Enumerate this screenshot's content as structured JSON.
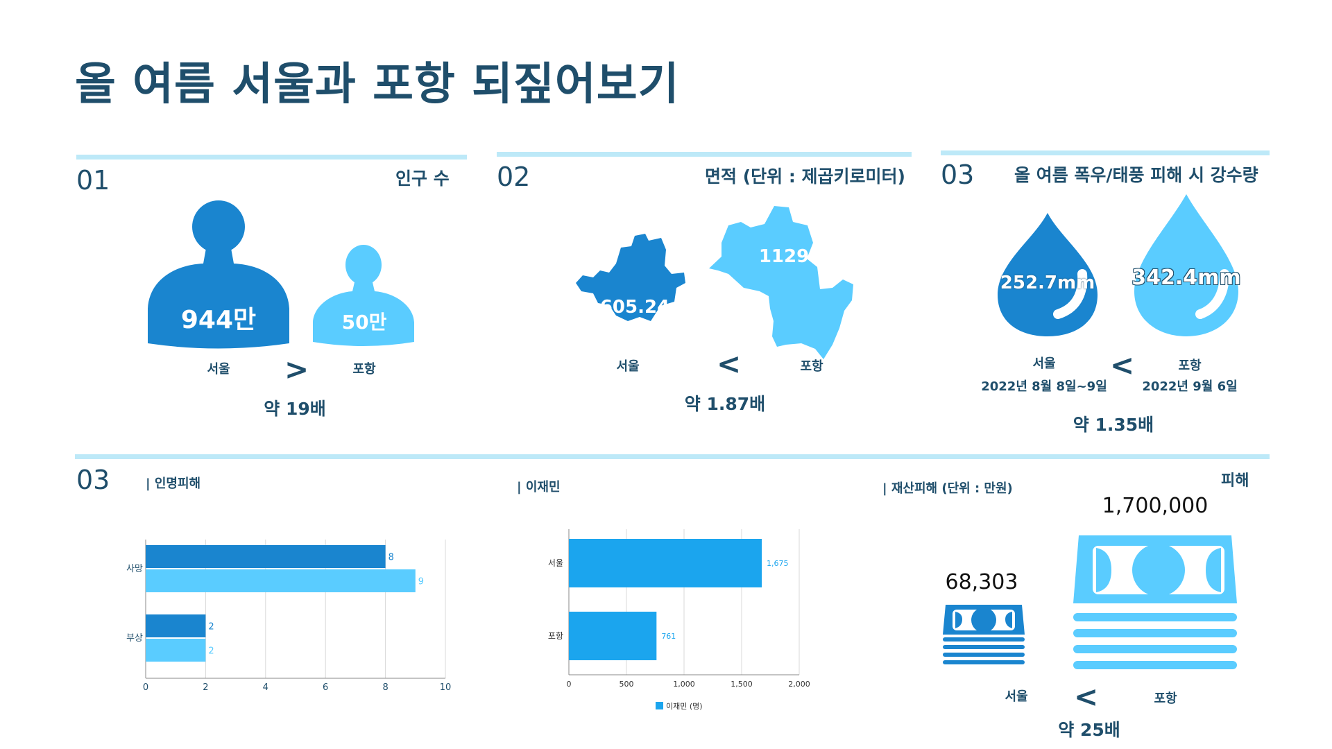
{
  "title": "올 여름 서울과 포항 되짚어보기",
  "colors": {
    "dark": "#1f4e6b",
    "seoul": "#1a85cf",
    "pohang": "#5accff",
    "bar_blue": "#1ba5ee",
    "band": "#bde9f8"
  },
  "section1": {
    "num": "01",
    "heading": "인구 수",
    "seoul_value": "944만",
    "pohang_value": "50만",
    "seoul_label": "서울",
    "pohang_label": "포항",
    "compare": ">",
    "ratio": "약 19배",
    "icons": [
      "person-icon",
      "person-icon"
    ]
  },
  "section2": {
    "num": "02",
    "heading": "면적 (단위 : 제곱키로미터)",
    "seoul_value": "605.24",
    "pohang_value": "1129",
    "seoul_label": "서울",
    "pohang_label": "포항",
    "compare": "<",
    "ratio": "약 1.87배",
    "icons": [
      "seoul-map-icon",
      "pohang-map-icon"
    ]
  },
  "section3": {
    "num": "03",
    "heading": "올 여름 폭우/태풍 피해 시 강수량",
    "seoul_value": "252.7mm",
    "pohang_value": "342.4mm",
    "seoul_label": "서울",
    "pohang_label": "포항",
    "seoul_date": "2022년 8월 8일~9일",
    "pohang_date": "2022년 9월 6일",
    "compare": "<",
    "ratio": "약 1.35배",
    "icons": [
      "water-drop-icon",
      "water-drop-icon"
    ]
  },
  "section4": {
    "num": "03",
    "casualty_heading": "| 인명피해",
    "displaced_heading": "| 이재민",
    "property_heading": "| 재산피해 (단위 : 만원)",
    "damage_label": "피해",
    "seoul_money": "68,303",
    "pohang_money": "1,700,000",
    "seoul_label": "서울",
    "pohang_label": "포항",
    "compare": "<",
    "ratio": "약 25배",
    "icons": [
      "money-stack-icon",
      "money-stack-icon"
    ]
  },
  "chart_data": [
    {
      "type": "bar",
      "orientation": "horizontal",
      "categories": [
        "사망",
        "부상"
      ],
      "series": [
        {
          "values": [
            8,
            2
          ],
          "color": "#1a85cf"
        },
        {
          "values": [
            9,
            2
          ],
          "color": "#5accff"
        }
      ],
      "xlim": [
        0,
        10
      ],
      "xticks": [
        "0",
        "2",
        "4",
        "6",
        "8",
        "10"
      ],
      "grid": true
    },
    {
      "type": "bar",
      "orientation": "horizontal",
      "categories": [
        "서울",
        "포항"
      ],
      "series": [
        {
          "name": "이재민 (명)",
          "values": [
            1675,
            761
          ],
          "labels": [
            "1,675",
            "761"
          ],
          "color": "#1ba5ee"
        }
      ],
      "xlim": [
        0,
        2000
      ],
      "xticks": [
        "0",
        "500",
        "1,000",
        "1,500",
        "2,000"
      ],
      "legend": "bottom",
      "grid": true
    }
  ]
}
